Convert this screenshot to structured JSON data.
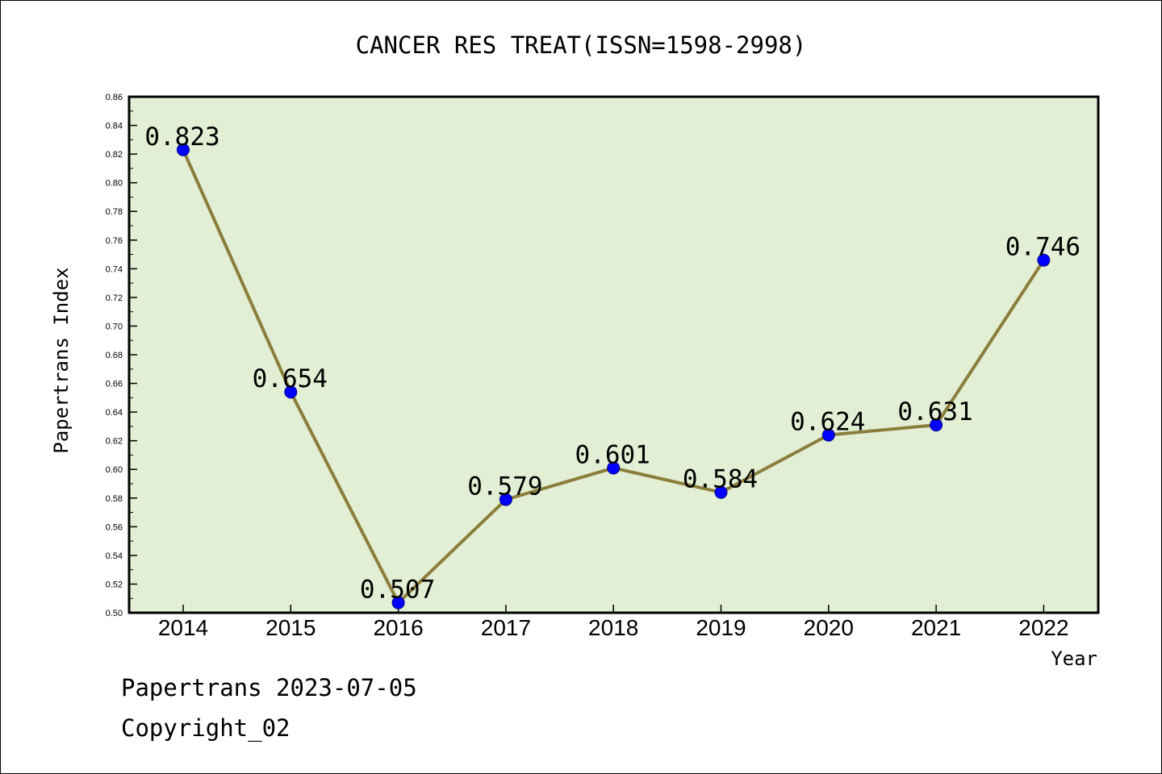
{
  "chart_data": {
    "type": "line",
    "title": "CANCER RES TREAT(ISSN=1598-2998)",
    "xlabel": "Year",
    "ylabel": "Papertrans Index",
    "categories": [
      "2014",
      "2015",
      "2016",
      "2017",
      "2018",
      "2019",
      "2020",
      "2021",
      "2022"
    ],
    "values": [
      0.823,
      0.654,
      0.507,
      0.579,
      0.601,
      0.584,
      0.624,
      0.631,
      0.746
    ],
    "data_labels": [
      "0.823",
      "0.654",
      "0.507",
      "0.579",
      "0.601",
      "0.584",
      "0.624",
      "0.631",
      "0.746"
    ],
    "ylim": [
      0.5,
      0.86
    ],
    "yticks": [
      "0.50",
      "0.52",
      "0.54",
      "0.56",
      "0.58",
      "0.60",
      "0.62",
      "0.64",
      "0.66",
      "0.68",
      "0.70",
      "0.72",
      "0.74",
      "0.76",
      "0.78",
      "0.80",
      "0.82",
      "0.84",
      "0.86"
    ],
    "grid": false,
    "legend": "none",
    "colors": {
      "line": "#8b7d3a",
      "marker": "#0000ff",
      "plot_bg": "#e2efd5"
    }
  },
  "footer": {
    "date_line": "Papertrans 2023-07-05",
    "copyright": "Copyright_02"
  }
}
